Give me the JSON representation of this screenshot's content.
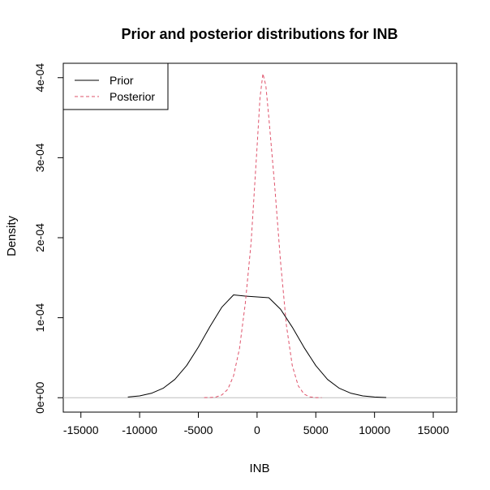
{
  "chart_data": {
    "type": "line",
    "title": "Prior and posterior distributions for INB",
    "xlabel": "INB",
    "ylabel": "Density",
    "xlim": [
      -16500,
      17000
    ],
    "ylim": [
      -1.8e-05,
      0.000418
    ],
    "x_ticks": [
      -15000,
      -10000,
      -5000,
      0,
      5000,
      10000,
      15000
    ],
    "x_tick_labels": [
      "-15000",
      "-10000",
      "-5000",
      "0",
      "5000",
      "10000",
      "15000"
    ],
    "y_ticks": [
      0,
      0.0001,
      0.0002,
      0.0003,
      0.0004
    ],
    "y_tick_labels": [
      "0e+00",
      "1e-04",
      "2e-04",
      "3e-04",
      "4e-04"
    ],
    "legend_position": "top-left",
    "reference_line": {
      "y": 0,
      "color": "#bebebe"
    },
    "series": [
      {
        "name": "Prior",
        "color": "#000000",
        "dash": "solid",
        "x": [
          -11000,
          -10000,
          -9000,
          -8000,
          -7000,
          -6000,
          -5000,
          -4000,
          -3000,
          -2000,
          -1000,
          0,
          1000,
          2000,
          3000,
          4000,
          5000,
          6000,
          7000,
          8000,
          9000,
          10000,
          11000
        ],
        "y": [
          9e-07,
          2.3e-06,
          5.5e-06,
          1.18e-05,
          2.29e-05,
          4.01e-05,
          6.32e-05,
          8.93e-05,
          0.0001131,
          0.0001285,
          0.000127,
          0.000126,
          0.000125,
          0.0001107,
          8.82e-05,
          6.28e-05,
          4.01e-05,
          2.29e-05,
          1.18e-05,
          5.5e-06,
          2.3e-06,
          9e-07,
          3e-07
        ]
      },
      {
        "name": "Posterior",
        "color": "#DF536B",
        "dash": "dashed",
        "x": [
          -4500,
          -4000,
          -3500,
          -3000,
          -2500,
          -2000,
          -1500,
          -1000,
          -500,
          0,
          250,
          500,
          750,
          1000,
          1500,
          2000,
          2500,
          3000,
          3500,
          4000,
          4500,
          5000,
          5500
        ],
        "y": [
          1e-07,
          3e-07,
          9e-07,
          3.4e-06,
          1.04e-05,
          2.73e-05,
          6.14e-05,
          0.0001182,
          0.0001948,
          0.000314,
          0.000375,
          0.000405,
          0.00039,
          0.00035,
          0.000265,
          0.00017,
          9e-05,
          4e-05,
          1.5e-05,
          4.5e-06,
          1.1e-06,
          2e-07,
          1e-07
        ]
      }
    ]
  }
}
